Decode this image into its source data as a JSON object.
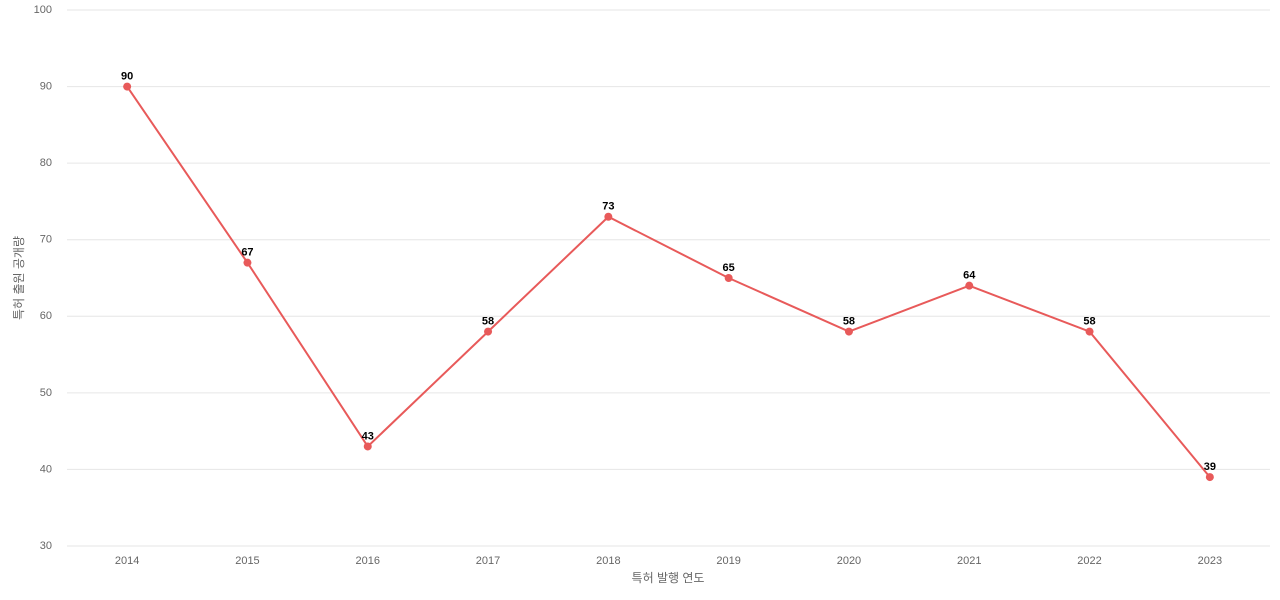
{
  "chart_data": {
    "type": "line",
    "x_label": "특허 발행 연도",
    "y_label": "특허 출원 공개량",
    "categories": [
      "2014",
      "2015",
      "2016",
      "2017",
      "2018",
      "2019",
      "2020",
      "2021",
      "2022",
      "2023"
    ],
    "values": [
      90,
      67,
      43,
      58,
      73,
      65,
      58,
      64,
      58,
      39
    ],
    "color": "#e85a5a",
    "ylim": [
      30,
      100
    ],
    "yticks": [
      30,
      40,
      50,
      60,
      70,
      80,
      90,
      100
    ],
    "grid": true
  }
}
